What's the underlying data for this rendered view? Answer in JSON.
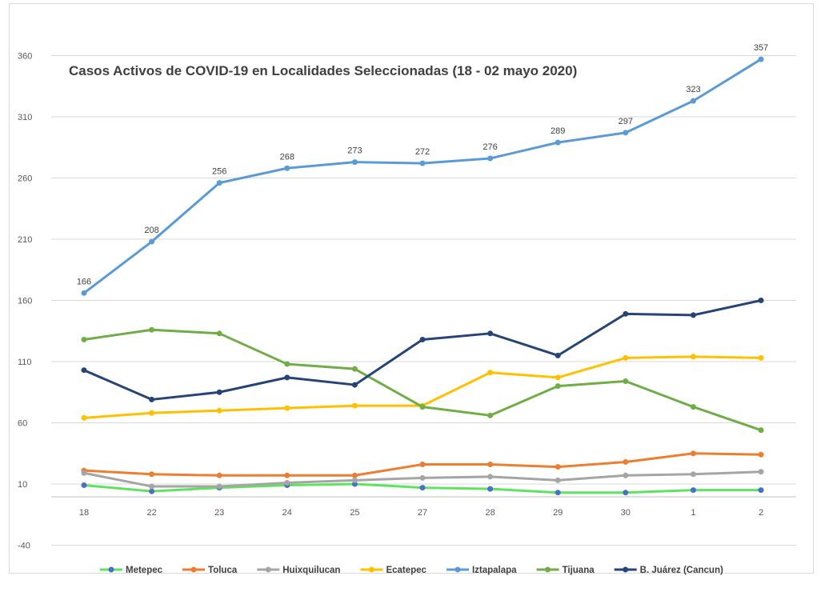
{
  "chart_data": {
    "type": "line",
    "title": "Casos Activos de COVID-19 en Localidades Seleccionadas  (18 - 02 mayo 2020)",
    "xlabel": "",
    "ylabel": "",
    "categories": [
      "18",
      "22",
      "23",
      "24",
      "25",
      "27",
      "28",
      "29",
      "30",
      "1",
      "2"
    ],
    "ylim": [
      -40,
      390
    ],
    "yticks": [
      -40,
      10,
      60,
      110,
      160,
      210,
      260,
      310,
      360
    ],
    "grid": true,
    "legend": "bottom",
    "series": [
      {
        "name": "Metepec",
        "color": "#5ee35e",
        "marker_color": "#4472c4",
        "values": [
          9,
          4,
          7,
          9,
          10,
          7,
          6,
          3,
          3,
          5,
          5
        ]
      },
      {
        "name": "Toluca",
        "color": "#ed7d31",
        "values": [
          21,
          18,
          17,
          17,
          17,
          26,
          26,
          24,
          28,
          35,
          34
        ]
      },
      {
        "name": "Huixquilucan",
        "color": "#a5a5a5",
        "values": [
          19,
          8,
          8,
          11,
          13,
          15,
          16,
          13,
          17,
          18,
          20
        ]
      },
      {
        "name": "Ecatepec",
        "color": "#ffc000",
        "values": [
          64,
          68,
          70,
          72,
          74,
          74,
          101,
          97,
          113,
          114,
          113
        ]
      },
      {
        "name": "Iztapalapa",
        "color": "#5b9bd5",
        "values": [
          166,
          208,
          256,
          268,
          273,
          272,
          276,
          289,
          297,
          323,
          357
        ],
        "labels": true
      },
      {
        "name": "Tijuana",
        "color": "#70ad47",
        "values": [
          128,
          136,
          133,
          108,
          104,
          73,
          66,
          90,
          94,
          73,
          54
        ]
      },
      {
        "name": "B. Juárez (Cancun)",
        "color": "#264478",
        "values": [
          103,
          79,
          85,
          97,
          91,
          128,
          133,
          115,
          149,
          148,
          160
        ]
      }
    ]
  }
}
